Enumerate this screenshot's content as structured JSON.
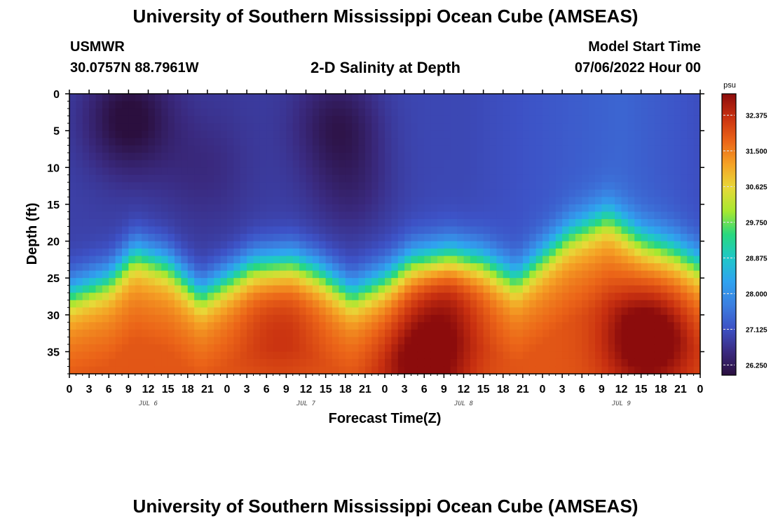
{
  "header": {
    "title": "University of Southern Mississippi Ocean Cube (AMSEAS)",
    "station": "USMWR",
    "coords": "30.0757N  88.7961W",
    "subtitle": "2-D Salinity at Depth",
    "model_label": "Model Start Time",
    "model_time": "07/06/2022 Hour 00",
    "bottom_title": "University of Southern Mississippi Ocean Cube (AMSEAS)"
  },
  "colors": {
    "scale": [
      "#2b0f3e",
      "#3a2a80",
      "#3d52c6",
      "#3b7fe0",
      "#2fa3f0",
      "#1fc8c8",
      "#28d87f",
      "#a7e830",
      "#e8d838",
      "#f5a225",
      "#eb6418",
      "#c83010",
      "#8c0c0c"
    ]
  },
  "chart_data": {
    "type": "heatmap",
    "title": "2-D Salinity at Depth",
    "xlabel": "Forecast Time(Z)",
    "ylabel": "Depth (ft)",
    "unit": "psu",
    "x_ticks": [
      "0",
      "3",
      "6",
      "9",
      "12",
      "15",
      "18",
      "21",
      "0",
      "3",
      "6",
      "9",
      "12",
      "15",
      "18",
      "21",
      "0",
      "3",
      "6",
      "9",
      "12",
      "15",
      "18",
      "21",
      "0",
      "3",
      "6",
      "9",
      "12",
      "15",
      "18",
      "21",
      "0"
    ],
    "day_labels": [
      "JUL 6",
      "JUL 7",
      "JUL 8",
      "JUL 9"
    ],
    "y_ticks": [
      "0",
      "5",
      "10",
      "15",
      "20",
      "25",
      "30",
      "35"
    ],
    "x_range_hours": [
      0,
      96
    ],
    "depth_range_ft": [
      0,
      38
    ],
    "colorbar_ticks": [
      "32.375",
      "31.500",
      "30.625",
      "29.750",
      "28.875",
      "28.000",
      "27.125",
      "26.250"
    ],
    "colorbar_range": [
      26.0,
      32.9
    ],
    "halocline_depth_ft": {
      "hours": [
        0,
        6,
        10,
        15,
        20,
        24,
        28,
        34,
        38,
        43,
        48,
        52,
        58,
        63,
        68,
        72,
        76,
        82,
        87,
        92,
        96
      ],
      "depth": [
        27,
        25,
        21.5,
        23,
        27,
        25,
        23,
        22.5,
        24,
        27,
        25,
        22.5,
        21.5,
        22.5,
        25,
        22,
        19,
        16.5,
        19.5,
        21,
        23
      ]
    },
    "surface_low": [
      {
        "hour": 9,
        "depth_ft": 3.5,
        "value": 26.0
      },
      {
        "hour": 20,
        "depth_ft": 10,
        "value": 26.7
      },
      {
        "hour": 41,
        "depth_ft": 4,
        "value": 26.2
      },
      {
        "hour": 43,
        "depth_ft": 13,
        "value": 26.5
      }
    ],
    "surface_values": {
      "hours": [
        0,
        24,
        48,
        60,
        72,
        84,
        96
      ],
      "value": [
        26.9,
        26.8,
        27.0,
        27.0,
        27.2,
        27.4,
        27.1
      ]
    },
    "deep_high": [
      {
        "hour": 88,
        "depth_ft": 33,
        "value": 32.9
      },
      {
        "hour": 57,
        "depth_ft": 28,
        "value": 32.3
      },
      {
        "hour": 54,
        "depth_ft": 37,
        "value": 32.6
      },
      {
        "hour": 32,
        "depth_ft": 30,
        "value": 32.0
      }
    ]
  }
}
